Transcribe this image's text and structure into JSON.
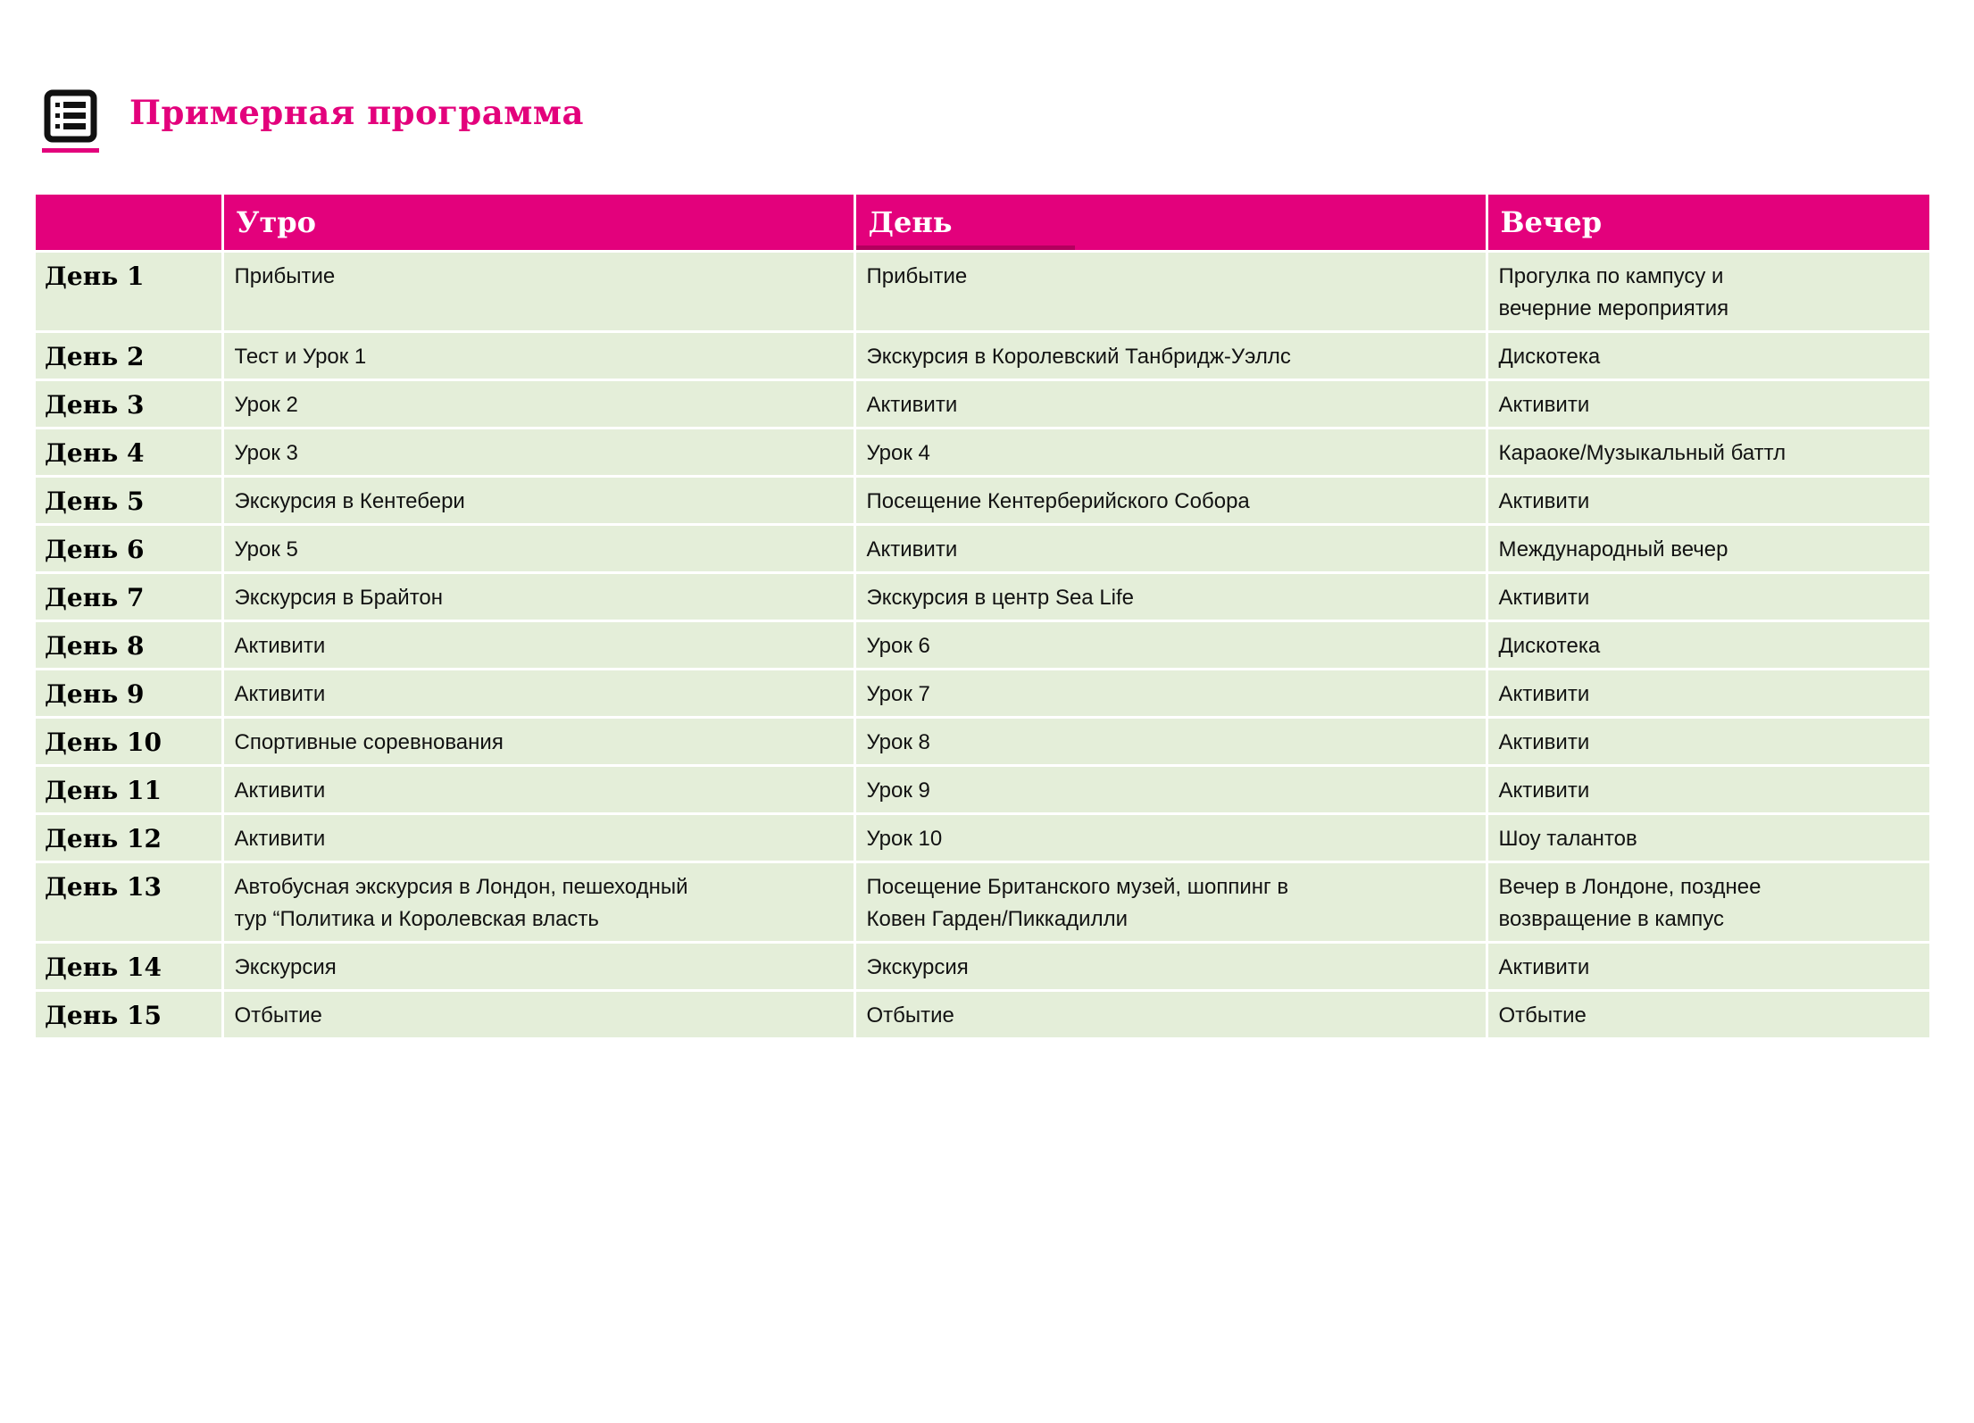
{
  "page": {
    "title": "Примерная программа"
  },
  "colors": {
    "accent_pink": "#e3017c",
    "accent_pink_dark": "#b3005e",
    "row_green": "#e4eed9",
    "header_text": "#ffffff"
  },
  "icon": {
    "name": "list-icon"
  },
  "table": {
    "columns": [
      "",
      "Утро",
      "День",
      "Вечер"
    ],
    "rows": [
      {
        "day": "День 1",
        "morning": "Прибытие",
        "afternoon": "Прибытие",
        "evening": "Прогулка по кампусу и\nвечерние мероприятия"
      },
      {
        "day": "День 2",
        "morning": "Тест и Урок 1",
        "afternoon": "Экскурсия в Королевский Танбридж-Уэллс",
        "evening": "Дискотека"
      },
      {
        "day": "День 3",
        "morning": "Урок 2",
        "afternoon": "Активити",
        "evening": "Активити"
      },
      {
        "day": "День 4",
        "morning": "Урок 3",
        "afternoon": "Урок 4",
        "evening": "Караоке/Музыкальный баттл"
      },
      {
        "day": "День 5",
        "morning": "Экскурсия в Кентебери",
        "afternoon": "Посещение Кентерберийского Собора",
        "evening": "Активити"
      },
      {
        "day": "День 6",
        "morning": "Урок 5",
        "afternoon": "Активити",
        "evening": "Международный вечер"
      },
      {
        "day": "День 7",
        "morning": "Экскурсия в Брайтон",
        "afternoon": "Экскурсия в центр Sea Life",
        "evening": "Активити"
      },
      {
        "day": "День 8",
        "morning": "Активити",
        "afternoon": "Урок 6",
        "evening": "Дискотека"
      },
      {
        "day": "День 9",
        "morning": "Активити",
        "afternoon": "Урок 7",
        "evening": "Активити"
      },
      {
        "day": "День 10",
        "morning": "Спортивные соревнования",
        "afternoon": "Урок 8",
        "evening": "Активити"
      },
      {
        "day": "День 11",
        "morning": "Активити",
        "afternoon": "Урок 9",
        "evening": "Активити"
      },
      {
        "day": "День 12",
        "morning": "Активити",
        "afternoon": "Урок 10",
        "evening": "Шоу талантов"
      },
      {
        "day": "День 13",
        "morning": "Автобусная экскурсия в Лондон, пешеходный\nтур “Политика и Королевская власть",
        "afternoon": "Посещение Британского музей, шоппинг в\nКовен Гарден/Пиккадилли",
        "evening": "Вечер в Лондоне, позднее\nвозвращение в кампус"
      },
      {
        "day": "День 14",
        "morning": "Экскурсия",
        "afternoon": "Экскурсия",
        "evening": "Активити"
      },
      {
        "day": "День 15",
        "morning": "Отбытие",
        "afternoon": "Отбытие",
        "evening": "Отбытие"
      }
    ]
  }
}
